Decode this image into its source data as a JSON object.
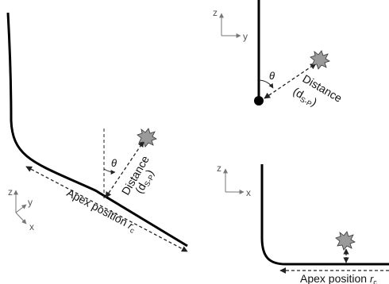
{
  "left_panel": {
    "axes": {
      "z": "z",
      "y": "y",
      "x": "x"
    },
    "theta": "θ",
    "distance_label": "Distance",
    "distance_sym": "d",
    "distance_sub": "S-P",
    "apex_label": "Apex position ",
    "apex_sym": "r",
    "apex_sub": "c"
  },
  "top_right_panel": {
    "axes": {
      "z": "z",
      "y": "y"
    },
    "theta": "θ",
    "distance_label": "Distance",
    "distance_sym": "d",
    "distance_sub": "S-P"
  },
  "bottom_right_panel": {
    "axes": {
      "z": "z",
      "x": "x"
    },
    "apex_label": "Apex position ",
    "apex_sym": "r",
    "apex_sub": "c"
  }
}
